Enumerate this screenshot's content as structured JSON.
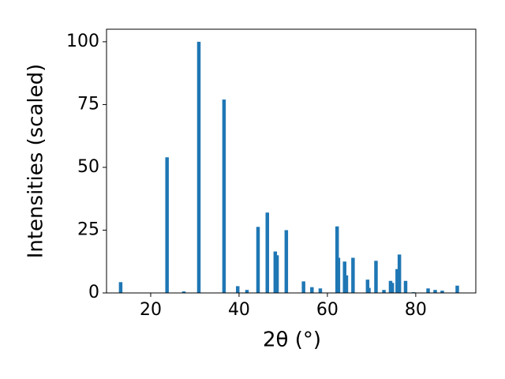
{
  "chart_data": {
    "type": "bar",
    "x_label": "2θ (°)",
    "y_label": "Intensities (scaled)",
    "x": [
      13.2,
      23.7,
      27.5,
      30.9,
      36.6,
      39.7,
      41.8,
      44.3,
      46.4,
      48.2,
      48.6,
      50.7,
      54.6,
      56.5,
      58.4,
      62.2,
      62.5,
      63.9,
      64.3,
      65.8,
      69.1,
      69.4,
      71.0,
      72.8,
      74.3,
      74.7,
      75.8,
      76.3,
      77.7,
      79.5,
      82.8,
      84.4,
      86.0,
      89.4
    ],
    "values": [
      4.3,
      54,
      0.6,
      100,
      77,
      2.7,
      1.2,
      26.3,
      32,
      16.5,
      15,
      25,
      4.6,
      2.3,
      1.8,
      26.5,
      14,
      12.5,
      7,
      14,
      5.3,
      2,
      12.8,
      1.2,
      4.8,
      4,
      9.5,
      15.3,
      4.8,
      0.3,
      1.8,
      1.2,
      0.9,
      2.9
    ],
    "color": "#1f77b4",
    "xlim": [
      10,
      93.6
    ],
    "xticks": [
      20,
      40,
      60,
      80
    ],
    "ylim": [
      0,
      105
    ],
    "yticks": [
      0,
      25,
      50,
      75,
      100
    ]
  }
}
